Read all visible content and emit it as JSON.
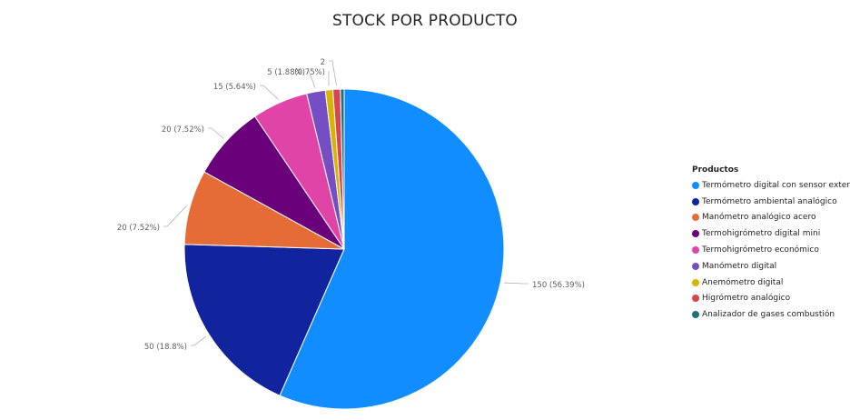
{
  "chart_data": {
    "type": "pie",
    "title": "STOCK POR PRODUCTO",
    "legend_title": "Productos",
    "legend_position": "right",
    "slices": [
      {
        "name": "Termómetro digital con sensor extern",
        "value": 150,
        "label": "150 (56.39%)",
        "color": "#118DFF"
      },
      {
        "name": "Termómetro ambiental analógico",
        "value": 50,
        "label": "50 (18.8%)",
        "color": "#12239E"
      },
      {
        "name": "Manómetro analógico acero",
        "value": 20,
        "label": "20 (7.52%)",
        "color": "#E66C37"
      },
      {
        "name": "Termohigrómetro digital mini",
        "value": 20,
        "label": "20 (7.52%)",
        "color": "#6B007B"
      },
      {
        "name": "Termohigrómetro económico",
        "value": 15,
        "label": "15 (5.64%)",
        "color": "#E044A7"
      },
      {
        "name": "Manómetro digital",
        "value": 5,
        "label": "5 (1.88%)",
        "color": "#744EC2"
      },
      {
        "name": "Anemómetro digital",
        "value": 2,
        "label": "(0.75%)",
        "color": "#D9B300"
      },
      {
        "name": "Higrómetro analógico",
        "value": 2,
        "label": "2",
        "color": "#D64550"
      },
      {
        "name": "Analizador de gases combustión",
        "value": 1,
        "label": "",
        "color": "#197278"
      }
    ]
  }
}
